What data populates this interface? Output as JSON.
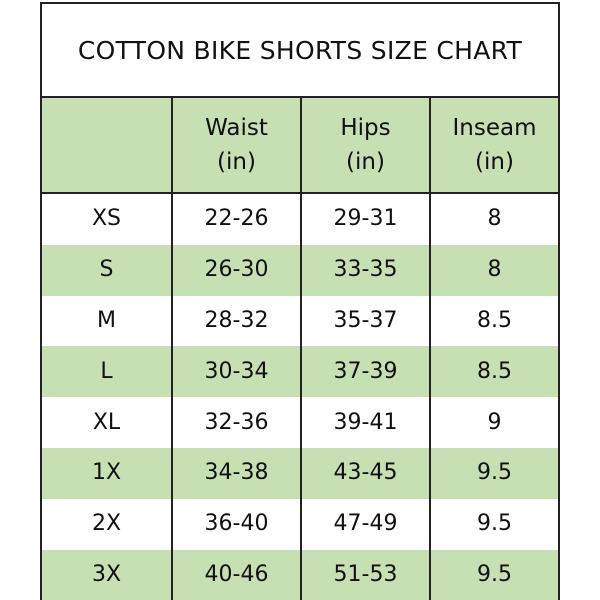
{
  "title": "COTTON BIKE SHORTS SIZE CHART",
  "colors": {
    "header_fill": "#c6e0b4",
    "alt_row_fill": "#c6e0b4",
    "border": "#222222"
  },
  "columns": [
    {
      "label": "",
      "unit": ""
    },
    {
      "label": "Waist",
      "unit": "(in)"
    },
    {
      "label": "Hips",
      "unit": "(in)"
    },
    {
      "label": "Inseam",
      "unit": "(in)"
    }
  ],
  "rows": [
    [
      "XS",
      "22-26",
      "29-31",
      "8"
    ],
    [
      "S",
      "26-30",
      "33-35",
      "8"
    ],
    [
      "M",
      "28-32",
      "35-37",
      "8.5"
    ],
    [
      "L",
      "30-34",
      "37-39",
      "8.5"
    ],
    [
      "XL",
      "32-36",
      "39-41",
      "9"
    ],
    [
      "1X",
      "34-38",
      "43-45",
      "9.5"
    ],
    [
      "2X",
      "36-40",
      "47-49",
      "9.5"
    ],
    [
      "3X",
      "40-46",
      "51-53",
      "9.5"
    ]
  ]
}
